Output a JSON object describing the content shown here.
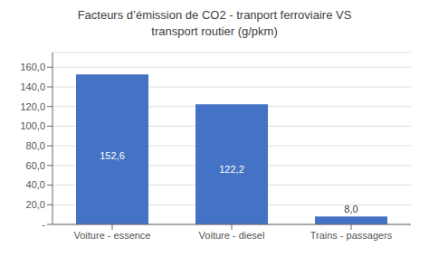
{
  "chart_data": {
    "type": "bar",
    "title": "Facteurs d’émission de CO2 - tranport ferroviaire VS\ntransport routier (g/pkm)",
    "categories": [
      "Voiture - essence",
      "Voiture - diesel",
      "Trains - passagers"
    ],
    "values": [
      152.6,
      122.2,
      8.0
    ],
    "value_labels": [
      "152,6",
      "122,2",
      "8,0"
    ],
    "data_labels": true,
    "color": "#4472C4",
    "ylim": [
      0,
      175
    ],
    "yticks": [
      {
        "value": 0,
        "label": "-"
      },
      {
        "value": 20,
        "label": "20,0"
      },
      {
        "value": 40,
        "label": "40,0"
      },
      {
        "value": 60,
        "label": "60,0"
      },
      {
        "value": 80,
        "label": "80,0"
      },
      {
        "value": 100,
        "label": "100,0"
      },
      {
        "value": 120,
        "label": "120,0"
      },
      {
        "value": 140,
        "label": "140,0"
      },
      {
        "value": 160,
        "label": "160,0"
      }
    ],
    "grid": true
  }
}
